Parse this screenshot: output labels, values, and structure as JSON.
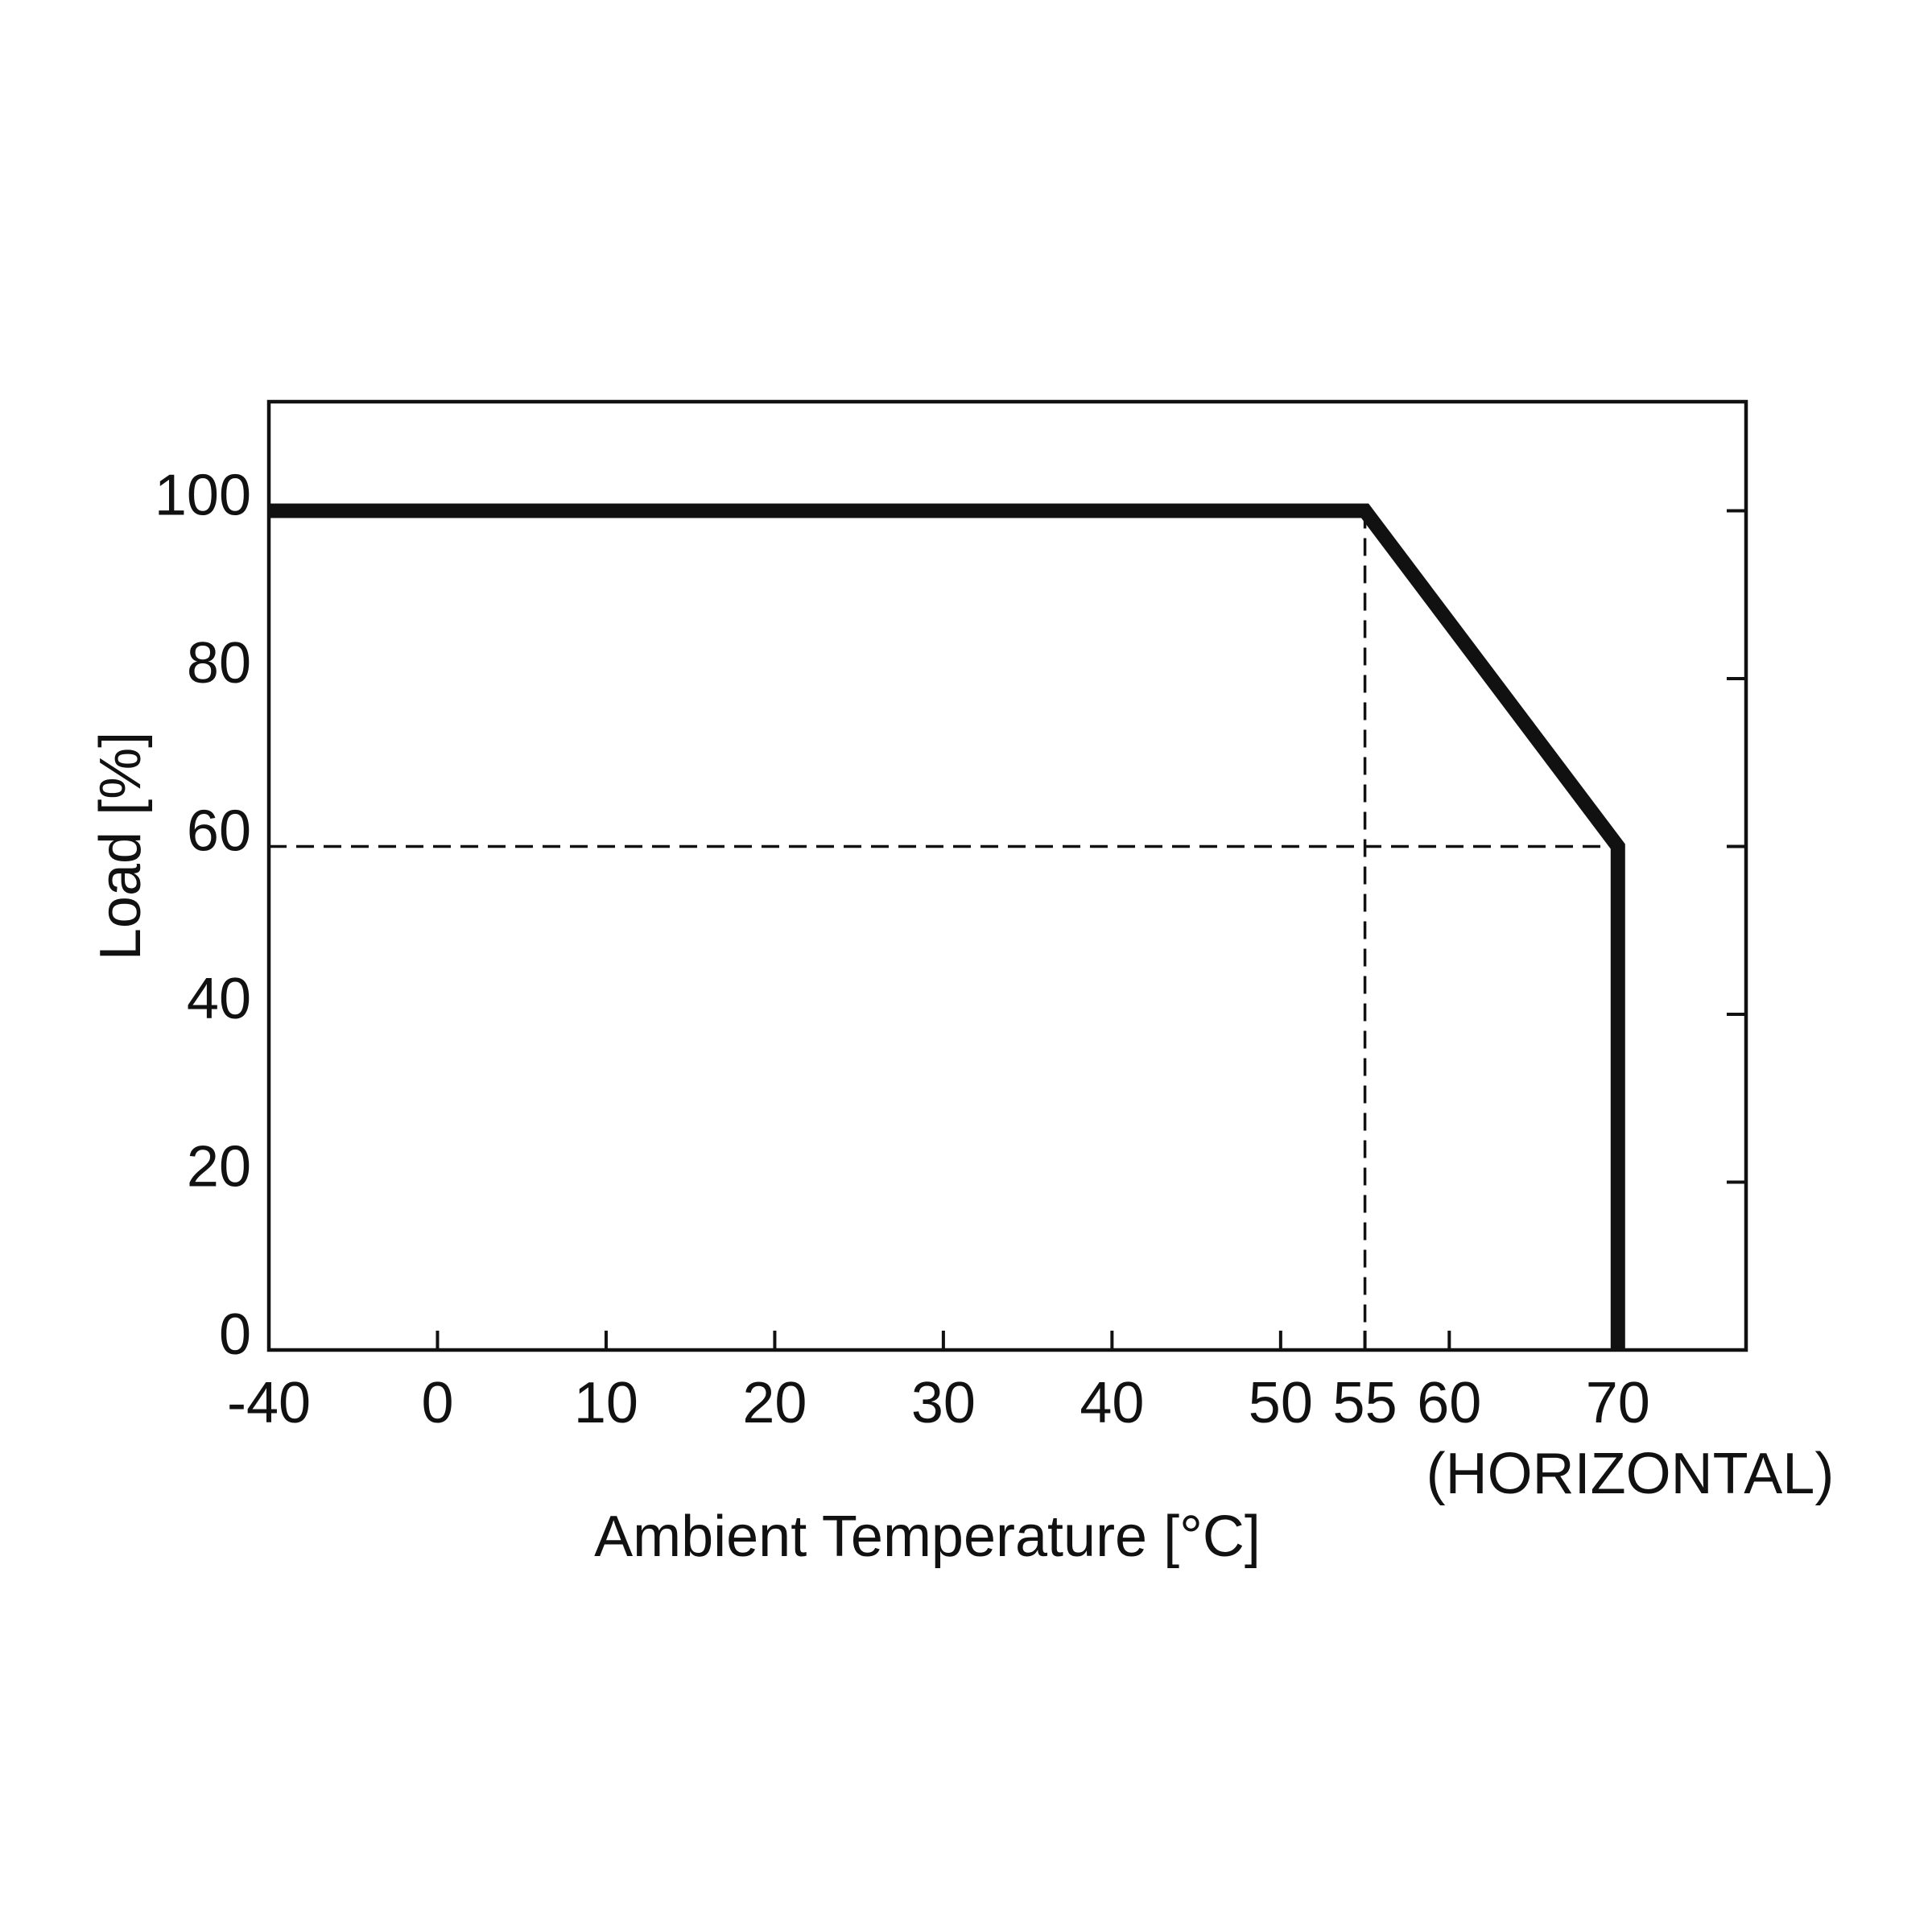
{
  "chart_data": {
    "type": "line",
    "xlabel": "Ambient Temperature [°C]",
    "ylabel": "Load [%]",
    "annotation": "(HORIZONTAL)",
    "x": [
      -40,
      55,
      70,
      70
    ],
    "series": [
      {
        "color": "#111111",
        "values": [
          100,
          100,
          60,
          0
        ]
      }
    ],
    "xlim": [
      -40,
      77.6
    ],
    "xbreak": [
      -40,
      0
    ],
    "xticks": [
      -40,
      0,
      10,
      20,
      30,
      40,
      50,
      55,
      60,
      70
    ],
    "ylim": [
      0,
      113
    ],
    "yticks": [
      0,
      20,
      40,
      60,
      80,
      100
    ],
    "guides": true,
    "grid": false
  }
}
